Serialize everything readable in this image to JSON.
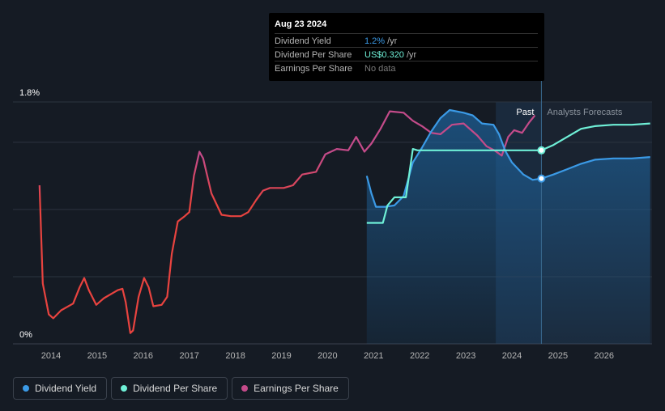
{
  "tooltip": {
    "date": "Aug 23 2024",
    "rows": [
      {
        "label": "Dividend Yield",
        "value": "1.2%",
        "unit": "/yr",
        "color": "#3b9ae6"
      },
      {
        "label": "Dividend Per Share",
        "value": "US$0.320",
        "unit": "/yr",
        "color": "#6ff0d7"
      },
      {
        "label": "Earnings Per Share",
        "value": "No data",
        "unit": "",
        "color": "#7a7a7a"
      }
    ]
  },
  "legend": [
    {
      "label": "Dividend Yield",
      "color": "#3b9ae6"
    },
    {
      "label": "Dividend Per Share",
      "color": "#6ff0d7"
    },
    {
      "label": "Earnings Per Share",
      "color": "#c44b8a"
    }
  ],
  "chart_data": {
    "type": "line",
    "y_ticks": [
      "1.8%",
      "0%"
    ],
    "x_ticks": [
      "2014",
      "2015",
      "2016",
      "2017",
      "2018",
      "2019",
      "2020",
      "2021",
      "2022",
      "2023",
      "2024",
      "2025",
      "2026"
    ],
    "past_label": "Past",
    "forecast_label": "Analysts Forecasts",
    "past_cutoff": 2024.64,
    "ylim": [
      0,
      1.8
    ],
    "colors": {
      "eps_low": "#e8433f",
      "eps_high": "#c44b8a",
      "yield": "#3b9ae6",
      "dps": "#6ff0d7"
    },
    "series": [
      {
        "name": "Earnings Per Share",
        "key": "eps",
        "points": [
          [
            2013.75,
            1.18
          ],
          [
            2013.82,
            0.45
          ],
          [
            2013.95,
            0.22
          ],
          [
            2014.05,
            0.19
          ],
          [
            2014.22,
            0.25
          ],
          [
            2014.48,
            0.3
          ],
          [
            2014.62,
            0.42
          ],
          [
            2014.72,
            0.49
          ],
          [
            2014.82,
            0.4
          ],
          [
            2014.98,
            0.29
          ],
          [
            2015.15,
            0.34
          ],
          [
            2015.45,
            0.4
          ],
          [
            2015.55,
            0.41
          ],
          [
            2015.62,
            0.31
          ],
          [
            2015.72,
            0.08
          ],
          [
            2015.78,
            0.1
          ],
          [
            2015.9,
            0.35
          ],
          [
            2016.02,
            0.49
          ],
          [
            2016.12,
            0.42
          ],
          [
            2016.22,
            0.28
          ],
          [
            2016.4,
            0.29
          ],
          [
            2016.52,
            0.35
          ],
          [
            2016.62,
            0.67
          ],
          [
            2016.75,
            0.91
          ],
          [
            2016.9,
            0.95
          ],
          [
            2017.0,
            0.98
          ],
          [
            2017.1,
            1.25
          ],
          [
            2017.22,
            1.43
          ],
          [
            2017.3,
            1.38
          ],
          [
            2017.48,
            1.12
          ],
          [
            2017.7,
            0.96
          ],
          [
            2017.9,
            0.95
          ],
          [
            2018.12,
            0.95
          ],
          [
            2018.28,
            0.98
          ],
          [
            2018.45,
            1.07
          ],
          [
            2018.6,
            1.14
          ],
          [
            2018.75,
            1.16
          ],
          [
            2019.05,
            1.16
          ],
          [
            2019.25,
            1.18
          ],
          [
            2019.45,
            1.26
          ],
          [
            2019.75,
            1.28
          ],
          [
            2019.95,
            1.41
          ],
          [
            2020.2,
            1.45
          ],
          [
            2020.45,
            1.44
          ],
          [
            2020.62,
            1.54
          ],
          [
            2020.8,
            1.43
          ],
          [
            2020.95,
            1.49
          ],
          [
            2021.15,
            1.6
          ],
          [
            2021.35,
            1.73
          ],
          [
            2021.65,
            1.72
          ],
          [
            2021.85,
            1.66
          ],
          [
            2022.05,
            1.62
          ],
          [
            2022.25,
            1.57
          ],
          [
            2022.45,
            1.56
          ],
          [
            2022.7,
            1.63
          ],
          [
            2022.95,
            1.64
          ],
          [
            2023.25,
            1.55
          ],
          [
            2023.45,
            1.47
          ],
          [
            2023.62,
            1.44
          ],
          [
            2023.78,
            1.4
          ],
          [
            2023.92,
            1.54
          ],
          [
            2024.05,
            1.59
          ],
          [
            2024.22,
            1.57
          ],
          [
            2024.38,
            1.65
          ],
          [
            2024.5,
            1.7
          ]
        ]
      },
      {
        "name": "Dividend Yield",
        "key": "yield",
        "points": [
          [
            2020.85,
            1.25
          ],
          [
            2020.95,
            1.12
          ],
          [
            2021.05,
            1.02
          ],
          [
            2021.25,
            1.02
          ],
          [
            2021.45,
            1.03
          ],
          [
            2021.65,
            1.1
          ],
          [
            2021.85,
            1.35
          ],
          [
            2022.05,
            1.46
          ],
          [
            2022.25,
            1.58
          ],
          [
            2022.45,
            1.68
          ],
          [
            2022.65,
            1.74
          ],
          [
            2022.95,
            1.72
          ],
          [
            2023.15,
            1.7
          ],
          [
            2023.35,
            1.64
          ],
          [
            2023.6,
            1.63
          ],
          [
            2023.72,
            1.56
          ],
          [
            2023.85,
            1.44
          ],
          [
            2024.0,
            1.35
          ],
          [
            2024.25,
            1.26
          ],
          [
            2024.45,
            1.22
          ],
          [
            2024.64,
            1.23
          ],
          [
            2024.9,
            1.26
          ],
          [
            2025.2,
            1.3
          ],
          [
            2025.5,
            1.34
          ],
          [
            2025.8,
            1.37
          ],
          [
            2026.2,
            1.38
          ],
          [
            2026.6,
            1.38
          ],
          [
            2027.0,
            1.39
          ]
        ]
      },
      {
        "name": "Dividend Per Share",
        "key": "dps",
        "points": [
          [
            2020.85,
            0.9
          ],
          [
            2021.0,
            0.9
          ],
          [
            2021.2,
            0.9
          ],
          [
            2021.3,
            1.03
          ],
          [
            2021.45,
            1.09
          ],
          [
            2021.7,
            1.09
          ],
          [
            2021.85,
            1.45
          ],
          [
            2021.95,
            1.44
          ],
          [
            2022.6,
            1.44
          ],
          [
            2023.3,
            1.44
          ],
          [
            2024.0,
            1.44
          ],
          [
            2024.64,
            1.44
          ],
          [
            2024.9,
            1.48
          ],
          [
            2025.2,
            1.54
          ],
          [
            2025.5,
            1.6
          ],
          [
            2025.8,
            1.62
          ],
          [
            2026.2,
            1.63
          ],
          [
            2026.6,
            1.63
          ],
          [
            2027.0,
            1.64
          ]
        ]
      }
    ]
  }
}
